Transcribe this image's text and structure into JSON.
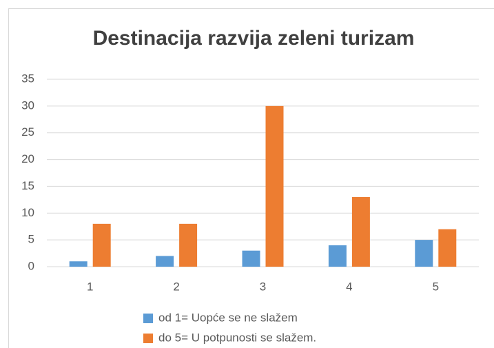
{
  "chart_data": {
    "type": "bar",
    "title": "Destinacija razvija zeleni turizam",
    "categories": [
      "1",
      "2",
      "3",
      "4",
      "5"
    ],
    "series": [
      {
        "name": "od 1= Uopće se ne slažem",
        "color": "#5b9bd5",
        "values": [
          1,
          2,
          3,
          4,
          5
        ]
      },
      {
        "name": "do 5= U potpunosti se slažem.",
        "color": "#ed7d31",
        "values": [
          8,
          8,
          30,
          13,
          7
        ]
      }
    ],
    "ylim": [
      0,
      35
    ],
    "yticks": [
      0,
      5,
      10,
      15,
      20,
      25,
      30,
      35
    ],
    "grid": true,
    "legend": "bottom"
  }
}
